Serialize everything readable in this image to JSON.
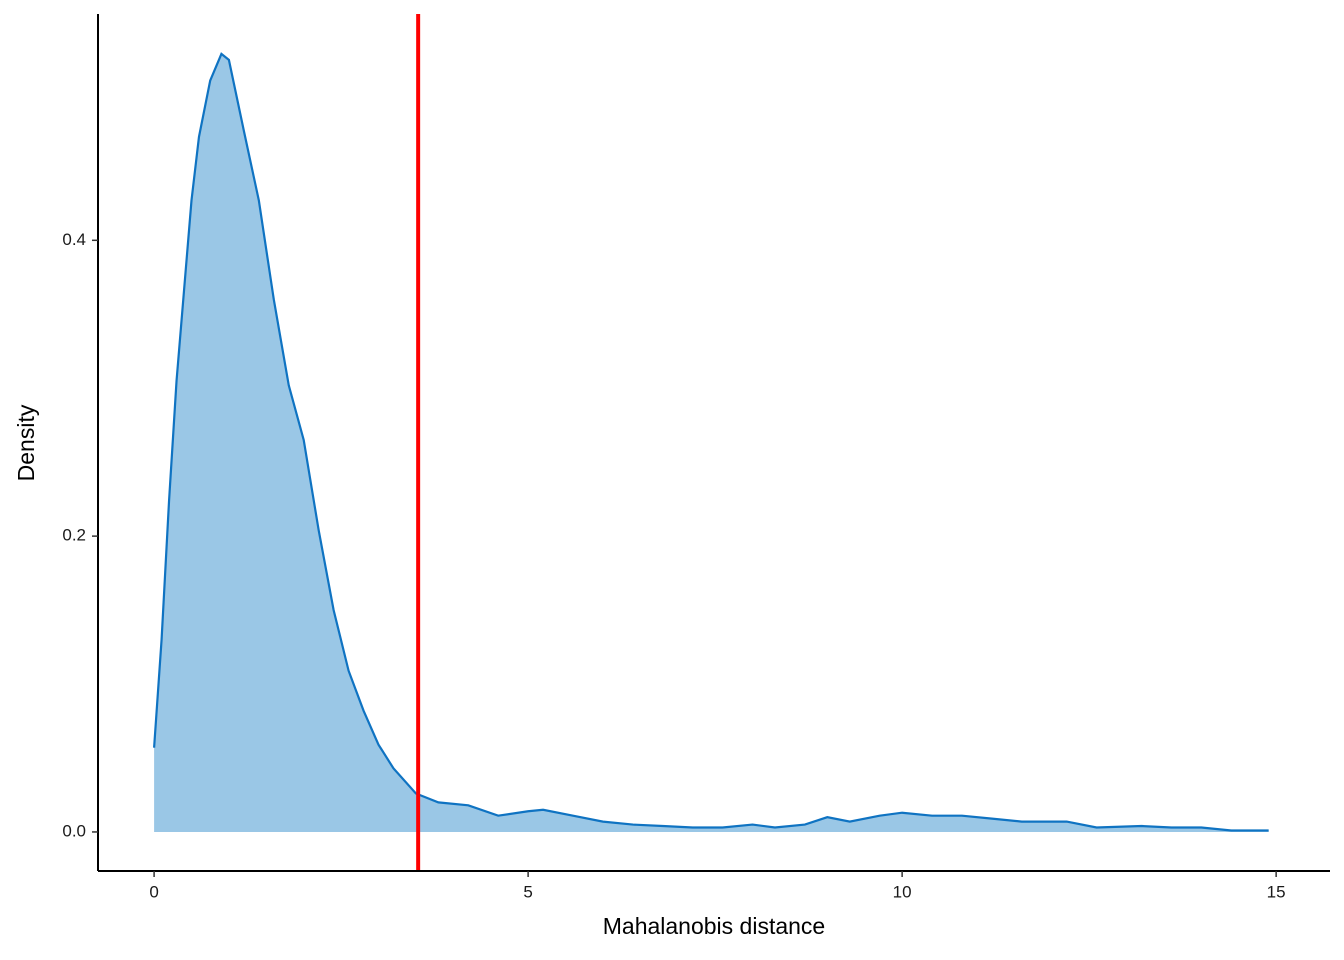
{
  "chart_data": {
    "type": "density",
    "x_label": "Mahalanobis distance",
    "y_label": "Density",
    "x": [
      0,
      0.1,
      0.2,
      0.3,
      0.4,
      0.5,
      0.6,
      0.75,
      0.9,
      1.0,
      1.2,
      1.4,
      1.6,
      1.8,
      2.0,
      2.2,
      2.4,
      2.6,
      2.8,
      3.0,
      3.2,
      3.5,
      3.8,
      4.2,
      4.6,
      5.0,
      5.2,
      5.6,
      6.0,
      6.4,
      6.8,
      7.2,
      7.6,
      8.0,
      8.3,
      8.7,
      9.0,
      9.3,
      9.7,
      10.0,
      10.4,
      10.8,
      11.2,
      11.6,
      12.2,
      12.6,
      13.2,
      13.6,
      14.0,
      14.4,
      14.9
    ],
    "values": [
      0.057,
      0.13,
      0.224,
      0.305,
      0.366,
      0.427,
      0.47,
      0.508,
      0.526,
      0.522,
      0.474,
      0.427,
      0.36,
      0.302,
      0.265,
      0.204,
      0.15,
      0.109,
      0.082,
      0.059,
      0.043,
      0.026,
      0.02,
      0.018,
      0.011,
      0.014,
      0.015,
      0.011,
      0.007,
      0.005,
      0.004,
      0.003,
      0.003,
      0.005,
      0.003,
      0.005,
      0.01,
      0.007,
      0.011,
      0.013,
      0.011,
      0.011,
      0.009,
      0.007,
      0.007,
      0.003,
      0.004,
      0.003,
      0.003,
      0.001,
      0.001
    ],
    "line_color": "#0f73c2",
    "fill_color": "#9ac7e6",
    "vline": {
      "value": 3.53,
      "color": "#ff0000"
    },
    "xlim": [
      -0.75,
      15.72
    ],
    "ylim": [
      -0.0264,
      0.553
    ],
    "xticks": [
      0,
      5,
      10,
      15
    ],
    "yticks": [
      {
        "value": 0,
        "label": "0.0"
      },
      {
        "value": 0.2,
        "label": "0.2"
      },
      {
        "value": 0.4,
        "label": "0.4"
      }
    ]
  }
}
